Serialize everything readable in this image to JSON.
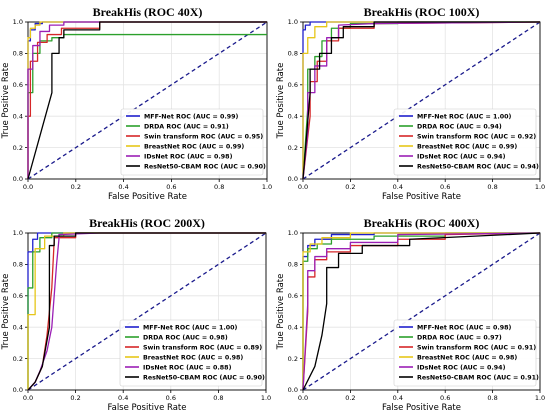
{
  "chart_data": [
    {
      "type": "line",
      "title": "BreakHis (ROC 40X)",
      "xlabel": "False Positive Rate",
      "ylabel": "True Positive Rate",
      "xlim": [
        0.0,
        1.0
      ],
      "ylim": [
        0.0,
        1.0
      ],
      "xticks": [
        "0.0",
        "0.2",
        "0.4",
        "0.6",
        "0.8",
        "1.0"
      ],
      "yticks": [
        "0.0",
        "0.2",
        "0.4",
        "0.6",
        "0.8",
        "1.0"
      ],
      "legend_position": "lower-right",
      "diagonal": {
        "color": "#1a1a8c",
        "style": "dashed"
      },
      "series": [
        {
          "name": "MFF-Net ROC (AUC = 0.99)",
          "color": "#1f1fcc",
          "x": [
            0,
            0,
            0.01,
            0.01,
            0.03,
            0.03,
            0.06,
            0.06,
            1
          ],
          "y": [
            0,
            0.88,
            0.88,
            0.95,
            0.95,
            0.99,
            0.99,
            1.0,
            1.0
          ]
        },
        {
          "name": "DRDA ROC (AUC = 0.91)",
          "color": "#2ca02c",
          "x": [
            0,
            0,
            0.02,
            0.02,
            0.05,
            0.05,
            0.1,
            0.1,
            0.15,
            0.15,
            1
          ],
          "y": [
            0,
            0.55,
            0.55,
            0.8,
            0.8,
            0.88,
            0.88,
            0.9,
            0.9,
            0.92,
            0.92
          ]
        },
        {
          "name": "Swin transform ROC (AUC = 0.95)",
          "color": "#d62728",
          "x": [
            0,
            0,
            0.01,
            0.01,
            0.04,
            0.04,
            0.08,
            0.08,
            0.14,
            0.14,
            0.3,
            0.3,
            1
          ],
          "y": [
            0,
            0.4,
            0.4,
            0.75,
            0.75,
            0.87,
            0.87,
            0.92,
            0.92,
            0.96,
            0.96,
            1.0,
            1.0
          ]
        },
        {
          "name": "BreastNet ROC (AUC = 0.99)",
          "color": "#e6c619",
          "x": [
            0,
            0,
            0.01,
            0.01,
            0.03,
            0.03,
            0.05,
            0.05,
            1
          ],
          "y": [
            0,
            0.9,
            0.9,
            0.96,
            0.96,
            0.98,
            0.98,
            1.0,
            1.0
          ]
        },
        {
          "name": "IDsNet ROC (AUC = 0.98)",
          "color": "#9b1fb5",
          "x": [
            0,
            0,
            0.02,
            0.02,
            0.05,
            0.05,
            0.09,
            0.09,
            0.15,
            0.15,
            1
          ],
          "y": [
            0,
            0.7,
            0.7,
            0.85,
            0.85,
            0.94,
            0.94,
            0.98,
            0.98,
            1.0,
            1.0
          ]
        },
        {
          "name": "ResNet50-CBAM ROC (AUC = 0.90)",
          "color": "#000000",
          "x": [
            0,
            0.1,
            0.1,
            0.13,
            0.13,
            0.15,
            0.15,
            0.3,
            0.3,
            1
          ],
          "y": [
            0,
            0.55,
            0.8,
            0.8,
            0.9,
            0.9,
            0.95,
            0.95,
            1.0,
            1.0
          ]
        }
      ]
    },
    {
      "type": "line",
      "title": "BreakHis (ROC 100X)",
      "xlabel": "False Positive Rate",
      "ylabel": "True Positive Rate",
      "xlim": [
        0.0,
        1.0
      ],
      "ylim": [
        0.0,
        1.0
      ],
      "xticks": [
        "0.0",
        "0.2",
        "0.4",
        "0.6",
        "0.8",
        "1.0"
      ],
      "yticks": [
        "0.0",
        "0.2",
        "0.4",
        "0.6",
        "0.8",
        "1.0"
      ],
      "legend_position": "lower-right",
      "diagonal": {
        "color": "#1a1a8c",
        "style": "dashed"
      },
      "series": [
        {
          "name": "MFF-Net ROC (AUC = 1.00)",
          "color": "#1f1fcc",
          "x": [
            0,
            0,
            0.01,
            0.01,
            0.03,
            0.03,
            1
          ],
          "y": [
            0,
            0.95,
            0.95,
            0.98,
            0.98,
            1.0,
            1.0
          ]
        },
        {
          "name": "DRDA ROC (AUC = 0.94)",
          "color": "#2ca02c",
          "x": [
            0,
            0.02,
            0.02,
            0.05,
            0.05,
            0.08,
            0.08,
            0.12,
            0.12,
            0.2,
            0.2,
            0.4,
            0.4,
            1
          ],
          "y": [
            0,
            0.45,
            0.7,
            0.7,
            0.78,
            0.78,
            0.88,
            0.88,
            0.96,
            0.96,
            0.99,
            0.99,
            1.0,
            1.0
          ]
        },
        {
          "name": "Swin transform ROC (AUC = 0.92)",
          "color": "#d62728",
          "x": [
            0,
            0.03,
            0.03,
            0.06,
            0.06,
            0.1,
            0.1,
            0.15,
            0.15,
            0.3,
            0.3,
            1
          ],
          "y": [
            0,
            0.4,
            0.62,
            0.62,
            0.75,
            0.75,
            0.88,
            0.88,
            0.96,
            0.96,
            0.99,
            1.0
          ]
        },
        {
          "name": "BreastNet ROC (AUC = 0.99)",
          "color": "#e6c619",
          "x": [
            0,
            0,
            0.02,
            0.02,
            0.05,
            0.05,
            0.1,
            0.1,
            1
          ],
          "y": [
            0,
            0.8,
            0.8,
            0.9,
            0.9,
            0.97,
            0.97,
            1.0,
            1.0
          ]
        },
        {
          "name": "IDsNet ROC (AUC = 0.94)",
          "color": "#9b1fb5",
          "x": [
            0,
            0.02,
            0.02,
            0.05,
            0.05,
            0.1,
            0.1,
            0.15,
            0.15,
            0.3,
            1
          ],
          "y": [
            0,
            0.3,
            0.55,
            0.55,
            0.72,
            0.72,
            0.9,
            0.9,
            0.98,
            0.99,
            1.0
          ]
        },
        {
          "name": "ResNet50-CBAM ROC (AUC = 0.94)",
          "color": "#000000",
          "x": [
            0,
            0.03,
            0.03,
            0.07,
            0.07,
            0.12,
            0.12,
            0.17,
            0.17,
            0.3,
            0.3,
            1
          ],
          "y": [
            0,
            0.55,
            0.7,
            0.7,
            0.8,
            0.8,
            0.9,
            0.9,
            0.97,
            0.97,
            1.0,
            1.0
          ]
        }
      ]
    },
    {
      "type": "line",
      "title": "BreakHis (ROC 200X)",
      "xlabel": "False Positive Rate",
      "ylabel": "True Positive Rate",
      "xlim": [
        0.0,
        1.0
      ],
      "ylim": [
        0.0,
        1.0
      ],
      "xticks": [
        "0.0",
        "0.2",
        "0.4",
        "0.6",
        "0.8",
        "1.0"
      ],
      "yticks": [
        "0.0",
        "0.2",
        "0.4",
        "0.6",
        "0.8",
        "1.0"
      ],
      "legend_position": "lower-right",
      "diagonal": {
        "color": "#1a1a8c",
        "style": "dashed"
      },
      "series": [
        {
          "name": "MFF-Net ROC (AUC = 1.00)",
          "color": "#1f1fcc",
          "x": [
            0,
            0,
            0.02,
            0.02,
            0.04,
            0.04,
            1
          ],
          "y": [
            0,
            0.88,
            0.88,
            0.96,
            0.96,
            1.0,
            1.0
          ]
        },
        {
          "name": "DRDA ROC (AUC = 0.98)",
          "color": "#2ca02c",
          "x": [
            0,
            0,
            0.02,
            0.02,
            0.05,
            0.05,
            0.1,
            0.1,
            1
          ],
          "y": [
            0,
            0.65,
            0.65,
            0.88,
            0.88,
            0.97,
            0.97,
            1.0,
            1.0
          ]
        },
        {
          "name": "Swin transform ROC (AUC = 0.89)",
          "color": "#d62728",
          "x": [
            0,
            0.03,
            0.06,
            0.08,
            0.1,
            0.11,
            0.11,
            0.2,
            0.2,
            1
          ],
          "y": [
            0,
            0.05,
            0.15,
            0.35,
            0.65,
            0.95,
            0.97,
            0.97,
            1.0,
            1.0
          ]
        },
        {
          "name": "BreastNet ROC (AUC = 0.98)",
          "color": "#e6c619",
          "x": [
            0,
            0,
            0.03,
            0.03,
            0.07,
            0.07,
            0.15,
            0.15,
            1
          ],
          "y": [
            0,
            0.48,
            0.48,
            0.9,
            0.9,
            0.98,
            0.98,
            1.0,
            1.0
          ]
        },
        {
          "name": "IDsNet ROC (AUC = 0.88)",
          "color": "#9b1fb5",
          "x": [
            0,
            0.03,
            0.05,
            0.08,
            0.1,
            0.12,
            0.13,
            0.13,
            0.3,
            1
          ],
          "y": [
            0,
            0.05,
            0.12,
            0.25,
            0.4,
            0.8,
            0.96,
            0.99,
            1.0,
            1.0
          ]
        },
        {
          "name": "ResNet50-CBAM ROC (AUC = 0.90)",
          "color": "#000000",
          "x": [
            0,
            0.03,
            0.06,
            0.09,
            0.09,
            0.11,
            0.11,
            0.2,
            0.2,
            1
          ],
          "y": [
            0,
            0.05,
            0.15,
            0.4,
            0.92,
            0.92,
            0.98,
            0.98,
            1.0,
            1.0
          ]
        }
      ]
    },
    {
      "type": "line",
      "title": "BreakHis (ROC 400X)",
      "xlabel": "False Positive Rate",
      "ylabel": "True Positive Rate",
      "xlim": [
        0.0,
        1.0
      ],
      "ylim": [
        0.0,
        1.0
      ],
      "xticks": [
        "0.0",
        "0.2",
        "0.4",
        "0.6",
        "0.8",
        "1.0"
      ],
      "yticks": [
        "0.0",
        "0.2",
        "0.4",
        "0.6",
        "0.8",
        "1.0"
      ],
      "legend_position": "lower-right",
      "diagonal": {
        "color": "#1a1a8c",
        "style": "dashed"
      },
      "series": [
        {
          "name": "MFF-Net ROC (AUC = 0.98)",
          "color": "#1f1fcc",
          "x": [
            0,
            0,
            0.02,
            0.02,
            0.05,
            0.05,
            0.12,
            0.12,
            0.3,
            0.3,
            1
          ],
          "y": [
            0,
            0.85,
            0.85,
            0.92,
            0.92,
            0.96,
            0.96,
            0.99,
            0.99,
            1.0,
            1.0
          ]
        },
        {
          "name": "DRDA ROC (AUC = 0.97)",
          "color": "#2ca02c",
          "x": [
            0,
            0,
            0.02,
            0.02,
            0.06,
            0.06,
            0.12,
            0.12,
            0.3,
            0.3,
            0.6,
            0.6,
            1
          ],
          "y": [
            0,
            0.82,
            0.82,
            0.9,
            0.9,
            0.93,
            0.93,
            0.96,
            0.96,
            0.98,
            0.98,
            1.0,
            1.0
          ]
        },
        {
          "name": "Swin transform ROC (AUC = 0.91)",
          "color": "#d62728",
          "x": [
            0,
            0.02,
            0.02,
            0.05,
            0.05,
            0.1,
            0.1,
            0.2,
            0.2,
            0.4,
            0.4,
            0.6,
            0.6,
            1
          ],
          "y": [
            0,
            0.5,
            0.72,
            0.72,
            0.83,
            0.83,
            0.88,
            0.88,
            0.92,
            0.92,
            0.96,
            0.96,
            0.99,
            1.0
          ]
        },
        {
          "name": "BreastNet ROC (AUC = 0.98)",
          "color": "#e6c619",
          "x": [
            0,
            0,
            0.03,
            0.03,
            0.08,
            0.08,
            0.2,
            0.2,
            1
          ],
          "y": [
            0,
            0.88,
            0.88,
            0.93,
            0.93,
            0.97,
            0.97,
            1.0,
            1.0
          ]
        },
        {
          "name": "IDsNet ROC (AUC = 0.94)",
          "color": "#9b1fb5",
          "x": [
            0,
            0.02,
            0.02,
            0.05,
            0.05,
            0.1,
            0.1,
            0.2,
            0.2,
            0.4,
            0.4,
            1
          ],
          "y": [
            0,
            0.55,
            0.76,
            0.76,
            0.85,
            0.85,
            0.9,
            0.9,
            0.94,
            0.94,
            0.99,
            1.0
          ]
        },
        {
          "name": "ResNet50-CBAM ROC (AUC = 0.91)",
          "color": "#000000",
          "x": [
            0,
            0.05,
            0.08,
            0.1,
            0.1,
            0.15,
            0.15,
            0.25,
            0.25,
            0.45,
            0.45,
            1
          ],
          "y": [
            0,
            0.15,
            0.35,
            0.55,
            0.78,
            0.78,
            0.87,
            0.87,
            0.92,
            0.92,
            0.96,
            1.0
          ]
        }
      ]
    }
  ]
}
